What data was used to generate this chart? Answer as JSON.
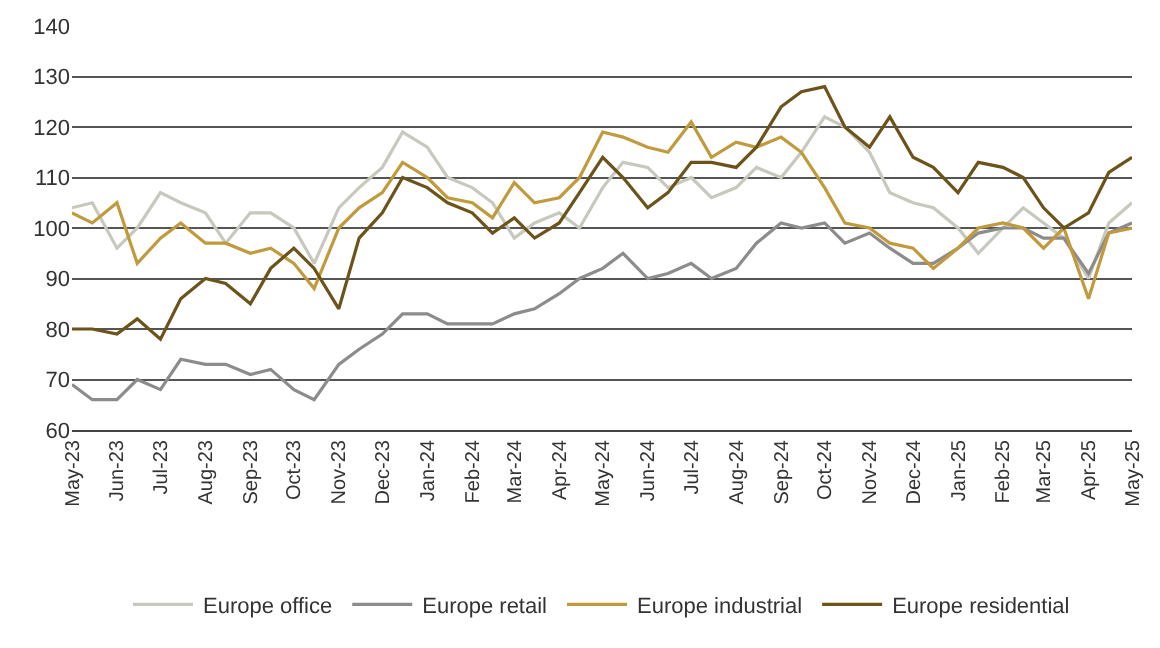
{
  "chart_data": {
    "type": "line",
    "x": [
      "2023-05-01",
      "2023-05-15",
      "2023-06-01",
      "2023-06-15",
      "2023-07-01",
      "2023-07-15",
      "2023-08-01",
      "2023-08-15",
      "2023-09-01",
      "2023-09-15",
      "2023-10-01",
      "2023-10-15",
      "2023-11-01",
      "2023-11-15",
      "2023-12-01",
      "2023-12-15",
      "2024-01-01",
      "2024-01-15",
      "2024-02-01",
      "2024-02-15",
      "2024-03-01",
      "2024-03-15",
      "2024-04-01",
      "2024-04-15",
      "2024-05-01",
      "2024-05-15",
      "2024-06-01",
      "2024-06-15",
      "2024-07-01",
      "2024-07-15",
      "2024-08-01",
      "2024-08-15",
      "2024-09-01",
      "2024-09-15",
      "2024-10-01",
      "2024-10-15",
      "2024-11-01",
      "2024-11-15",
      "2024-12-01",
      "2024-12-15",
      "2025-01-01",
      "2025-01-15",
      "2025-02-01",
      "2025-02-15",
      "2025-03-01",
      "2025-03-15",
      "2025-04-01",
      "2025-04-15",
      "2025-05-01"
    ],
    "series": [
      {
        "name": "Europe office",
        "color": "#c8c8be",
        "values": [
          104,
          105,
          96,
          100,
          107,
          105,
          103,
          97,
          103,
          103,
          100,
          93,
          104,
          108,
          112,
          119,
          116,
          110,
          108,
          105,
          98,
          101,
          103,
          100,
          108,
          113,
          112,
          108,
          110,
          106,
          108,
          112,
          110,
          115,
          122,
          120,
          115,
          107,
          105,
          104,
          100,
          95,
          100,
          104,
          101,
          98,
          90,
          101,
          105
        ]
      },
      {
        "name": "Europe retail",
        "color": "#8c8c8c",
        "values": [
          69,
          66,
          66,
          70,
          68,
          74,
          73,
          73,
          71,
          72,
          68,
          66,
          73,
          76,
          79,
          83,
          83,
          81,
          81,
          81,
          83,
          84,
          87,
          90,
          92,
          95,
          90,
          91,
          93,
          90,
          92,
          97,
          101,
          100,
          101,
          97,
          99,
          96,
          93,
          93,
          96,
          99,
          100,
          100,
          98,
          98,
          91,
          99,
          101
        ]
      },
      {
        "name": "Europe industrial",
        "color": "#c09a3c",
        "values": [
          103,
          101,
          105,
          93,
          98,
          101,
          97,
          97,
          95,
          96,
          93,
          88,
          100,
          104,
          107,
          113,
          110,
          106,
          105,
          102,
          109,
          105,
          106,
          110,
          119,
          118,
          116,
          115,
          121,
          114,
          117,
          116,
          118,
          115,
          108,
          101,
          100,
          97,
          96,
          92,
          96,
          100,
          101,
          100,
          96,
          100,
          86,
          99,
          100
        ]
      },
      {
        "name": "Europe residential",
        "color": "#6b531a",
        "values": [
          80,
          80,
          79,
          82,
          78,
          86,
          90,
          89,
          85,
          92,
          96,
          92,
          84,
          98,
          103,
          110,
          108,
          105,
          103,
          99,
          102,
          98,
          101,
          107,
          114,
          110,
          104,
          107,
          113,
          113,
          112,
          116,
          124,
          127,
          128,
          120,
          116,
          122,
          114,
          112,
          107,
          113,
          112,
          110,
          104,
          100,
          103,
          111,
          114
        ]
      }
    ],
    "xlim": [
      "2023-05-01",
      "2025-05-01"
    ],
    "xticks": [
      {
        "value": "2023-05-01",
        "label": "May-23"
      },
      {
        "value": "2023-06-01",
        "label": "Jun-23"
      },
      {
        "value": "2023-07-01",
        "label": "Jul-23"
      },
      {
        "value": "2023-08-01",
        "label": "Aug-23"
      },
      {
        "value": "2023-09-01",
        "label": "Sep-23"
      },
      {
        "value": "2023-10-01",
        "label": "Oct-23"
      },
      {
        "value": "2023-11-01",
        "label": "Nov-23"
      },
      {
        "value": "2023-12-01",
        "label": "Dec-23"
      },
      {
        "value": "2024-01-01",
        "label": "Jan-24"
      },
      {
        "value": "2024-02-01",
        "label": "Feb-24"
      },
      {
        "value": "2024-03-01",
        "label": "Mar-24"
      },
      {
        "value": "2024-04-01",
        "label": "Apr-24"
      },
      {
        "value": "2024-05-01",
        "label": "May-24"
      },
      {
        "value": "2024-06-01",
        "label": "Jun-24"
      },
      {
        "value": "2024-07-01",
        "label": "Jul-24"
      },
      {
        "value": "2024-08-01",
        "label": "Aug-24"
      },
      {
        "value": "2024-09-01",
        "label": "Sep-24"
      },
      {
        "value": "2024-10-01",
        "label": "Oct-24"
      },
      {
        "value": "2024-11-01",
        "label": "Nov-24"
      },
      {
        "value": "2024-12-01",
        "label": "Dec-24"
      },
      {
        "value": "2025-01-01",
        "label": "Jan-25"
      },
      {
        "value": "2025-02-01",
        "label": "Feb-25"
      },
      {
        "value": "2025-03-01",
        "label": "Mar-25"
      },
      {
        "value": "2025-04-01",
        "label": "Apr-25"
      },
      {
        "value": "2025-05-01",
        "label": "May-25"
      }
    ],
    "ylim": [
      60,
      140
    ],
    "yticks": [
      60,
      70,
      80,
      90,
      100,
      110,
      120,
      130,
      140
    ],
    "grid": "y",
    "legend": "bottom",
    "marker": "none",
    "line_style": "solid"
  }
}
